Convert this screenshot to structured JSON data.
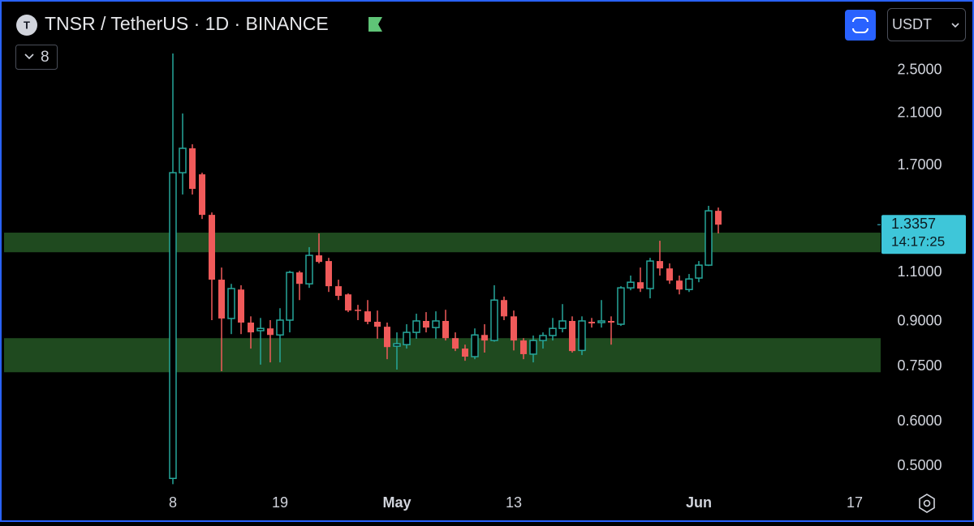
{
  "chart_data": {
    "type": "candlestick",
    "title": "TNSR / TetherUS · 1D · BINANCE",
    "symbol_badge": "T",
    "indicator_count": 8,
    "quote_currency": "USDT",
    "countdown": "14:17:25",
    "log_scale": true,
    "up_color": "#26a69a",
    "down_color": "#f05a5a",
    "zone_color": "#1f4a1f",
    "ylim": [
      0.461,
      3.33
    ],
    "yticks": [
      {
        "value": 2.5,
        "label": "2.5000"
      },
      {
        "value": 2.1,
        "label": "2.1000"
      },
      {
        "value": 1.7,
        "label": "1.7000"
      },
      {
        "value": 1.1,
        "label": "1.1000"
      },
      {
        "value": 0.9,
        "label": "0.9000"
      },
      {
        "value": 0.75,
        "label": "0.7500"
      },
      {
        "value": 0.6,
        "label": "0.6000"
      },
      {
        "value": 0.5,
        "label": "0.5000"
      }
    ],
    "xlim": [
      -17.75,
      72.67
    ],
    "xticks": [
      {
        "value": 0,
        "label": "8"
      },
      {
        "value": 11,
        "label": "19"
      },
      {
        "value": 23,
        "label": "May"
      },
      {
        "value": 35,
        "label": "13"
      },
      {
        "value": 54,
        "label": "Jun"
      },
      {
        "value": 70,
        "label": "17"
      }
    ],
    "zones": [
      {
        "from": 1.194,
        "to": 1.293
      },
      {
        "from": 0.733,
        "to": 0.842
      }
    ],
    "open": [
      0.476,
      1.65,
      1.822,
      1.639,
      1.39,
      1.068,
      0.912,
      1.026,
      0.897,
      0.868,
      0.876,
      0.853,
      0.906,
      1.1,
      1.05,
      1.179,
      1.152,
      1.04,
      1.006,
      0.945,
      0.939,
      0.9,
      0.882,
      0.815,
      0.82,
      0.862,
      0.903,
      0.879,
      0.903,
      0.842,
      0.807,
      0.781,
      0.853,
      0.834,
      0.983,
      0.92,
      0.834,
      0.789,
      0.834,
      0.851,
      0.876,
      0.903,
      0.801,
      0.9,
      0.897,
      0.903,
      0.891,
      1.033,
      1.057,
      1.03,
      1.152,
      1.118,
      1.064,
      1.026,
      1.075,
      1.133,
      1.413
    ],
    "high": [
      2.679,
      2.099,
      1.852,
      1.65,
      1.404,
      1.122,
      1.05,
      1.044,
      0.92,
      0.914,
      0.906,
      0.951,
      1.107,
      1.107,
      1.219,
      1.289,
      1.167,
      1.068,
      1.01,
      0.964,
      0.983,
      0.942,
      0.897,
      0.862,
      0.891,
      0.93,
      0.936,
      0.939,
      0.945,
      0.862,
      0.82,
      0.876,
      0.891,
      1.044,
      0.997,
      0.942,
      0.842,
      0.851,
      0.862,
      0.914,
      0.967,
      0.92,
      0.92,
      0.914,
      0.983,
      0.92,
      1.04,
      1.086,
      1.122,
      1.167,
      1.251,
      1.141,
      1.086,
      1.093,
      1.152,
      1.442,
      1.432
    ],
    "low": [
      0.465,
      1.51,
      1.51,
      1.367,
      0.906,
      0.736,
      0.856,
      0.856,
      0.807,
      0.756,
      0.763,
      0.763,
      0.862,
      0.983,
      1.033,
      1.141,
      1.016,
      0.983,
      0.936,
      0.906,
      0.891,
      0.84,
      0.773,
      0.741,
      0.807,
      0.84,
      0.862,
      0.84,
      0.834,
      0.799,
      0.768,
      0.773,
      0.794,
      0.83,
      0.906,
      0.801,
      0.773,
      0.763,
      0.807,
      0.834,
      0.862,
      0.794,
      0.786,
      0.879,
      0.879,
      0.82,
      0.885,
      1.023,
      1.016,
      0.99,
      1.086,
      1.05,
      1.006,
      1.016,
      1.057,
      1.129,
      1.289
    ],
    "close": [
      1.65,
      1.822,
      1.545,
      1.39,
      1.068,
      0.912,
      1.03,
      0.897,
      0.862,
      0.876,
      0.853,
      0.906,
      1.1,
      1.05,
      1.179,
      1.148,
      1.04,
      1.0,
      0.942,
      0.942,
      0.9,
      0.882,
      0.812,
      0.823,
      0.862,
      0.903,
      0.879,
      0.903,
      0.842,
      0.807,
      0.781,
      0.853,
      0.834,
      0.983,
      0.92,
      0.834,
      0.789,
      0.834,
      0.851,
      0.876,
      0.903,
      0.799,
      0.903,
      0.894,
      0.903,
      0.897,
      1.033,
      1.057,
      1.03,
      1.152,
      1.118,
      1.064,
      1.026,
      1.071,
      1.133,
      1.413,
      1.3357
    ]
  }
}
